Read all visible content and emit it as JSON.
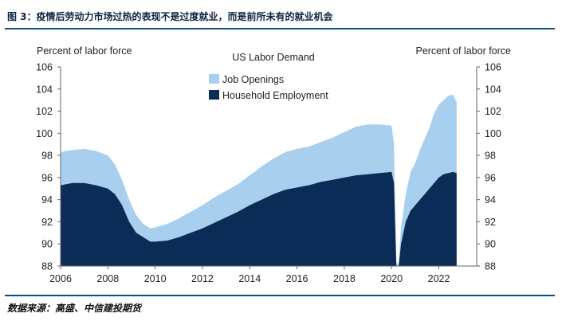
{
  "header": {
    "figure_title": "图 3：疫情后劳动力市场过热的表现不是过度就业，而是前所未有的就业机会"
  },
  "footer": {
    "source": "数据来源：高盛、中信建投期货"
  },
  "colors": {
    "job_openings": "#a9cfee",
    "household_employment": "#0a2c57",
    "rule": "#0e4d86"
  },
  "chart_data": {
    "type": "area",
    "title": "US Labor Demand",
    "ylabel_left": "Percent of labor force",
    "ylabel_right": "Percent of labor force",
    "xlim": [
      2006,
      2023.6
    ],
    "ylim": [
      88,
      106
    ],
    "x_ticks": [
      "2006",
      "2008",
      "2010",
      "2012",
      "2014",
      "2016",
      "2018",
      "2020",
      "2022"
    ],
    "y_ticks": [
      "88",
      "90",
      "92",
      "94",
      "96",
      "98",
      "100",
      "102",
      "104",
      "106"
    ],
    "legend": [
      {
        "name": "Job Openings",
        "color_key": "job_openings"
      },
      {
        "name": "Household Employment",
        "color_key": "household_employment"
      }
    ],
    "x": [
      2006.0,
      2006.5,
      2007.0,
      2007.5,
      2008.0,
      2008.3,
      2008.6,
      2008.9,
      2009.2,
      2009.5,
      2009.8,
      2010.0,
      2010.5,
      2011.0,
      2011.5,
      2012.0,
      2012.5,
      2013.0,
      2013.5,
      2014.0,
      2014.5,
      2015.0,
      2015.5,
      2016.0,
      2016.5,
      2017.0,
      2017.5,
      2018.0,
      2018.5,
      2019.0,
      2019.5,
      2020.0,
      2020.1,
      2020.2,
      2020.3,
      2020.4,
      2020.6,
      2020.8,
      2021.0,
      2021.2,
      2021.4,
      2021.6,
      2021.8,
      2022.0,
      2022.2,
      2022.4,
      2022.6,
      2022.75
    ],
    "series": [
      {
        "name": "Household Employment",
        "values": [
          95.3,
          95.5,
          95.5,
          95.3,
          95.0,
          94.5,
          93.5,
          92.0,
          91.0,
          90.6,
          90.2,
          90.2,
          90.3,
          90.6,
          91.0,
          91.4,
          91.9,
          92.4,
          92.9,
          93.5,
          94.0,
          94.5,
          94.9,
          95.1,
          95.3,
          95.6,
          95.8,
          96.0,
          96.2,
          96.3,
          96.4,
          96.5,
          95.5,
          88.0,
          88.0,
          90.0,
          92.0,
          93.0,
          93.5,
          94.0,
          94.5,
          95.0,
          95.5,
          96.0,
          96.3,
          96.4,
          96.5,
          96.4
        ]
      },
      {
        "name": "Job Openings",
        "values": [
          98.3,
          98.5,
          98.6,
          98.4,
          98.0,
          97.2,
          95.8,
          94.0,
          92.6,
          91.8,
          91.4,
          91.5,
          91.8,
          92.3,
          92.9,
          93.5,
          94.2,
          94.8,
          95.4,
          96.2,
          97.0,
          97.7,
          98.3,
          98.6,
          98.8,
          99.2,
          99.6,
          100.1,
          100.6,
          100.8,
          100.8,
          100.7,
          99.0,
          88.3,
          88.1,
          91.5,
          94.5,
          96.5,
          97.3,
          98.5,
          99.5,
          100.5,
          101.8,
          102.6,
          103.0,
          103.4,
          103.5,
          102.8
        ]
      }
    ]
  }
}
